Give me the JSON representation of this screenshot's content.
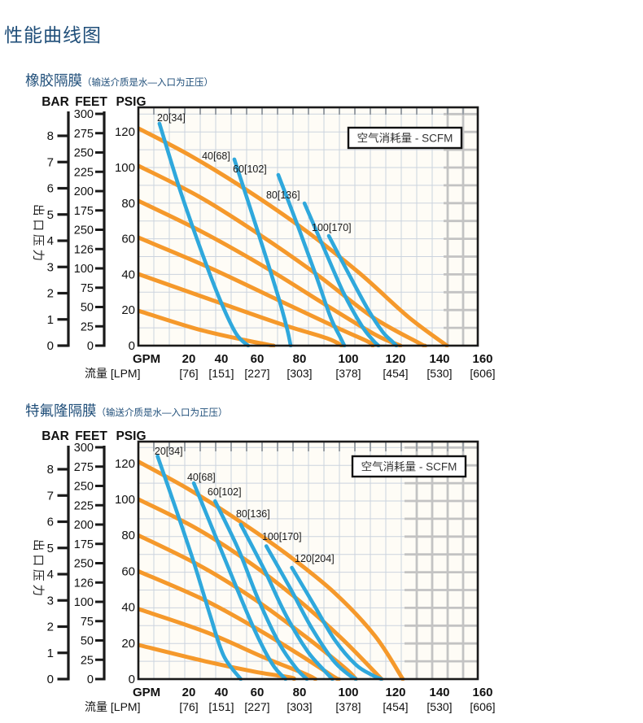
{
  "page": {
    "title": "性能曲线图"
  },
  "colors": {
    "heading_blue": "#1F4E79",
    "curve_orange": "#F5992B",
    "curve_blue": "#2FA8DC",
    "grid_fine": "#CBD3DE",
    "grid_coarse": "#C3C3C3",
    "ink": "#111111",
    "legend_text": "#333333"
  },
  "charts": [
    {
      "section_title": "橡胶隔膜",
      "section_subtitle": "（输送介质是水—入口为正压）",
      "legend_label": "空气消耗量 - SCFM",
      "pressure_axis_label": "出口压力",
      "axis_headers": {
        "bar": "BAR",
        "feet": "FEET",
        "psig": "PSIG"
      },
      "bar_ticks": [
        "0",
        "1",
        "2",
        "3",
        "4",
        "5",
        "6",
        "7",
        "8"
      ],
      "feet_ticks": [
        "300",
        "275",
        "250",
        "225",
        "200",
        "175",
        "250",
        "126",
        "100",
        "75",
        "50",
        "25",
        "0"
      ],
      "psig_ticks": [
        "120",
        "100",
        "80",
        "60",
        "40",
        "20",
        "0"
      ],
      "x_axis": {
        "primary_unit": "GPM",
        "secondary_unit": "流量 [LPM]",
        "gpm_labels": [
          "20",
          "40",
          "60",
          "80",
          "100",
          "120",
          "140",
          "160"
        ],
        "lpm_labels": [
          "[76]",
          "[151]",
          "[227]",
          "[303]",
          "[378]",
          "[454]",
          "[530]",
          "[606]"
        ]
      },
      "chart_data": {
        "type": "line",
        "title": "橡胶隔膜性能曲线",
        "xlabel": "流量 GPM [LPM]",
        "ylabel": "出口压力 PSIG / FEET / BAR",
        "xlim": [
          0,
          160
        ],
        "ylim": [
          0,
          135
        ],
        "grid": true,
        "legend": "空气消耗量 - SCFM",
        "legend_position": "top-right",
        "series": [
          {
            "name": "psi-122",
            "group": "discharge-pressure",
            "color": "orange",
            "points": [
              [
                0,
                122
              ],
              [
                24.8,
                106.4
              ],
              [
                51.5,
                86.8
              ],
              [
                78.2,
                64.8
              ],
              [
                103.8,
                40.6
              ],
              [
                126.7,
                16
              ],
              [
                144.7,
                0
              ]
            ]
          },
          {
            "name": "psi-100",
            "group": "discharge-pressure",
            "color": "orange",
            "points": [
              [
                0,
                101
              ],
              [
                28.6,
                83.6
              ],
              [
                56.5,
                62.6
              ],
              [
                84,
                39.7
              ],
              [
                109.9,
                16
              ],
              [
                131.7,
                1.4
              ],
              [
                134.4,
                0
              ]
            ]
          },
          {
            "name": "psi-80",
            "group": "discharge-pressure",
            "color": "orange",
            "points": [
              [
                0,
                81.3
              ],
              [
                30.5,
                63.5
              ],
              [
                61,
                42.9
              ],
              [
                88.5,
                22.4
              ],
              [
                111.5,
                5.9
              ],
              [
                122.9,
                0
              ]
            ]
          },
          {
            "name": "psi-60",
            "group": "discharge-pressure",
            "color": "orange",
            "points": [
              [
                0,
                60.7
              ],
              [
                32.4,
                44.3
              ],
              [
                64.9,
                26
              ],
              [
                92.4,
                10.5
              ],
              [
                107.6,
                2.3
              ],
              [
                109.9,
                0
              ]
            ]
          },
          {
            "name": "psi-40",
            "group": "discharge-pressure",
            "color": "orange",
            "points": [
              [
                0,
                40.2
              ],
              [
                33.6,
                26
              ],
              [
                66.4,
                12.3
              ],
              [
                88.5,
                4.1
              ],
              [
                95.4,
                0
              ]
            ]
          },
          {
            "name": "psi-20",
            "group": "discharge-pressure",
            "color": "orange",
            "points": [
              [
                0,
                19.6
              ],
              [
                26.7,
                9.6
              ],
              [
                49.6,
                3.2
              ],
              [
                61,
                0.5
              ],
              [
                63.4,
                0
              ]
            ]
          },
          {
            "name": "scfm-20",
            "group": "air-consumption",
            "color": "blue",
            "label": "20[34]",
            "label_at": [
              8.8,
              126
            ],
            "points": [
              [
                9.9,
                124.7
              ],
              [
                19.1,
                89
              ],
              [
                29,
                54.8
              ],
              [
                38.2,
                26
              ],
              [
                45.8,
                6.8
              ],
              [
                51.5,
                0
              ]
            ]
          },
          {
            "name": "scfm-40",
            "group": "air-consumption",
            "color": "blue",
            "label": "40[68]",
            "label_at": [
              29.8,
              104.6
            ],
            "points": [
              [
                45,
                104.6
              ],
              [
                52.7,
                76.3
              ],
              [
                60.3,
                47.9
              ],
              [
                66.4,
                24.2
              ],
              [
                69.8,
                9.1
              ],
              [
                71.4,
                0
              ]
            ]
          },
          {
            "name": "scfm-60",
            "group": "air-consumption",
            "color": "blue",
            "label": "60[102]",
            "label_at": [
              44.3,
              97.3
            ],
            "points": [
              [
                65.6,
                95.9
              ],
              [
                74.8,
                67.1
              ],
              [
                83.2,
                39.7
              ],
              [
                90.1,
                16
              ],
              [
                94.7,
                4.6
              ],
              [
                96.6,
                0
              ]
            ]
          },
          {
            "name": "scfm-80",
            "group": "air-consumption",
            "color": "blue",
            "label": "80[136]",
            "label_at": [
              59.9,
              82.6
            ],
            "points": [
              [
                77.9,
                79.9
              ],
              [
                87,
                54.8
              ],
              [
                96.2,
                29.7
              ],
              [
                104.6,
                11.4
              ],
              [
                109.9,
                3.2
              ],
              [
                112.6,
                0
              ]
            ]
          },
          {
            "name": "scfm-100",
            "group": "air-consumption",
            "color": "blue",
            "label": "100[170]",
            "label_at": [
              81.3,
              64.4
            ],
            "points": [
              [
                89.3,
                61.6
              ],
              [
                98.5,
                40.6
              ],
              [
                107.6,
                20.5
              ],
              [
                114.5,
                7.8
              ],
              [
                119.1,
                2.3
              ],
              [
                121,
                0
              ]
            ]
          }
        ]
      }
    },
    {
      "section_title": "特氟隆隔膜",
      "section_subtitle": "（输送介质是水—入口为正压）",
      "legend_label": "空气消耗量 - SCFM",
      "pressure_axis_label": "出口压力",
      "axis_headers": {
        "bar": "BAR",
        "feet": "FEET",
        "psig": "PSIG"
      },
      "bar_ticks": [
        "0",
        "1",
        "2",
        "3",
        "4",
        "5",
        "6",
        "7",
        "8"
      ],
      "feet_ticks": [
        "300",
        "275",
        "250",
        "225",
        "200",
        "175",
        "250",
        "126",
        "100",
        "75",
        "50",
        "25",
        "0"
      ],
      "psig_ticks": [
        "120",
        "100",
        "80",
        "60",
        "40",
        "20",
        "0"
      ],
      "x_axis": {
        "primary_unit": "GPM",
        "secondary_unit": "流量 [LPM]",
        "gpm_labels": [
          "20",
          "40",
          "60",
          "80",
          "100",
          "120",
          "140",
          "160"
        ],
        "lpm_labels": [
          "[76]",
          "[151]",
          "[227]",
          "[303]",
          "[378]",
          "[454]",
          "[530]",
          "[606]"
        ]
      },
      "chart_data": {
        "type": "line",
        "title": "特氟隆隔膜性能曲线",
        "xlabel": "流量 GPM [LPM]",
        "ylabel": "出口压力 PSIG / FEET / BAR",
        "xlim": [
          0,
          160
        ],
        "ylim": [
          0,
          135
        ],
        "grid": true,
        "legend": "空气消耗量 - SCFM",
        "legend_position": "top-right",
        "series": [
          {
            "name": "psi-122",
            "group": "discharge-pressure",
            "color": "orange",
            "points": [
              [
                0,
                121
              ],
              [
                23,
                106
              ],
              [
                46,
                89
              ],
              [
                69,
                70
              ],
              [
                92,
                48
              ],
              [
                111,
                24
              ],
              [
                124,
                0
              ]
            ]
          },
          {
            "name": "psi-100",
            "group": "discharge-pressure",
            "color": "orange",
            "points": [
              [
                0,
                100
              ],
              [
                27,
                84
              ],
              [
                52,
                65
              ],
              [
                74,
                45
              ],
              [
                95,
                23
              ],
              [
                114,
                0
              ]
            ]
          },
          {
            "name": "psi-80",
            "group": "discharge-pressure",
            "color": "orange",
            "points": [
              [
                0,
                80
              ],
              [
                29,
                63
              ],
              [
                55,
                44
              ],
              [
                78,
                24
              ],
              [
                97,
                6
              ],
              [
                102,
                0
              ]
            ]
          },
          {
            "name": "psi-60",
            "group": "discharge-pressure",
            "color": "orange",
            "points": [
              [
                0,
                60
              ],
              [
                31,
                44
              ],
              [
                57,
                27
              ],
              [
                79,
                11
              ],
              [
                92,
                1
              ],
              [
                94,
                0
              ]
            ]
          },
          {
            "name": "psi-40",
            "group": "discharge-pressure",
            "color": "orange",
            "points": [
              [
                0,
                39
              ],
              [
                32,
                26
              ],
              [
                59,
                12
              ],
              [
                78,
                3
              ],
              [
                83,
                0
              ]
            ]
          },
          {
            "name": "psi-20",
            "group": "discharge-pressure",
            "color": "orange",
            "points": [
              [
                0,
                19
              ],
              [
                31,
                10
              ],
              [
                55,
                4
              ],
              [
                71,
                1
              ],
              [
                73,
                0
              ]
            ]
          },
          {
            "name": "scfm-20",
            "group": "air-consumption",
            "color": "blue",
            "label": "20[34]",
            "label_at": [
              7.6,
              124.9
            ],
            "points": [
              [
                9,
                124
              ],
              [
                17.5,
                95
              ],
              [
                26,
                65
              ],
              [
                33.5,
                36
              ],
              [
                40,
                13
              ],
              [
                48,
                0
              ]
            ]
          },
          {
            "name": "scfm-40",
            "group": "air-consumption",
            "color": "blue",
            "label": "40[68]",
            "label_at": [
              22.9,
              110.4
            ],
            "points": [
              [
                26,
                109
              ],
              [
                36,
                80
              ],
              [
                46,
                51
              ],
              [
                55,
                26
              ],
              [
                63,
                8
              ],
              [
                69,
                0
              ]
            ]
          },
          {
            "name": "scfm-60",
            "group": "air-consumption",
            "color": "blue",
            "label": "60[102]",
            "label_at": [
              32.4,
              102.3
            ],
            "points": [
              [
                36,
                99
              ],
              [
                47,
                72
              ],
              [
                56,
                45
              ],
              [
                66,
                20
              ],
              [
                74,
                6
              ],
              [
                79,
                0
              ]
            ]
          },
          {
            "name": "scfm-80",
            "group": "air-consumption",
            "color": "blue",
            "label": "80[136]",
            "label_at": [
              45.8,
              90
            ],
            "points": [
              [
                48,
                86
              ],
              [
                59,
                61
              ],
              [
                69,
                36
              ],
              [
                79,
                16
              ],
              [
                87,
                5
              ],
              [
                91,
                0
              ]
            ]
          },
          {
            "name": "scfm-100",
            "group": "air-consumption",
            "color": "blue",
            "label": "100[170]",
            "label_at": [
              58,
              77.4
            ],
            "points": [
              [
                60,
                74
              ],
              [
                71,
                51
              ],
              [
                81,
                29
              ],
              [
                91,
                11
              ],
              [
                98,
                3
              ],
              [
                102,
                0
              ]
            ]
          },
          {
            "name": "scfm-120",
            "group": "air-consumption",
            "color": "blue",
            "label": "120[204]",
            "label_at": [
              73.3,
              65.2
            ],
            "points": [
              [
                72,
                62
              ],
              [
                82,
                42
              ],
              [
                92,
                22
              ],
              [
                102,
                8
              ],
              [
                110,
                2
              ],
              [
                114,
                0
              ]
            ]
          }
        ]
      }
    }
  ]
}
